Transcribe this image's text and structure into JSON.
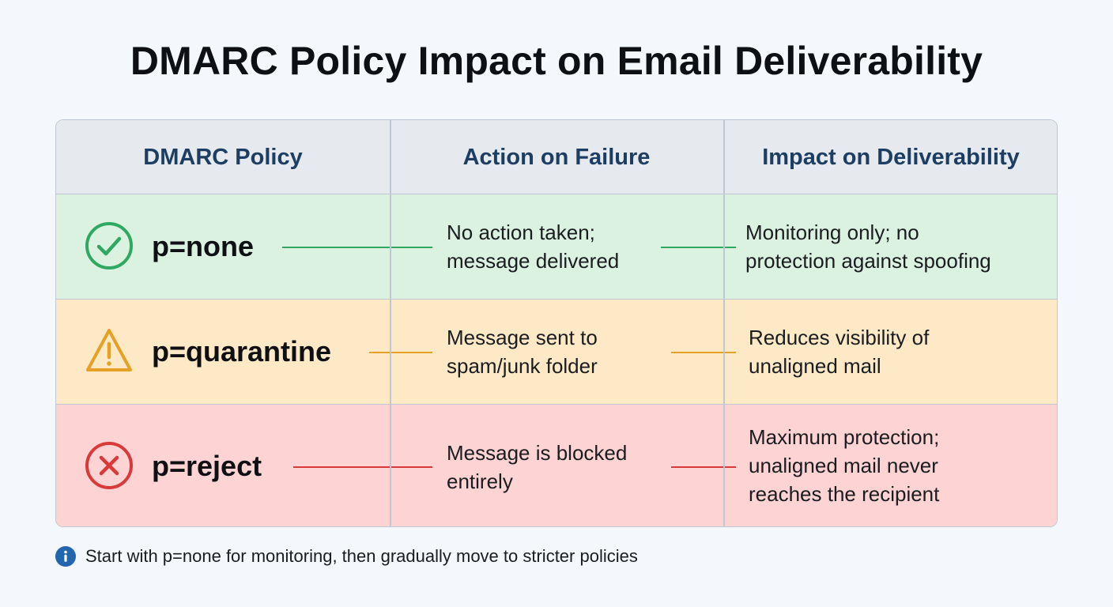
{
  "title": "DMARC Policy Impact on Email Deliverability",
  "table": {
    "headers": [
      "DMARC Policy",
      "Action on Failure",
      "Impact on Deliverability"
    ],
    "rows": [
      {
        "icon": "check-circle-icon",
        "policy": "p=none",
        "action": "No action taken;\nmessage delivered",
        "impact": "Monitoring only; no\nprotection against spoofing",
        "color": "#2fa862",
        "background": "#dcf2e1"
      },
      {
        "icon": "warning-triangle-icon",
        "policy": "p=quarantine",
        "action": "Message sent to\nspam/junk folder",
        "impact": "Reduces visibility of\nunaligned mail",
        "color": "#e5a126",
        "background": "#fde9c6"
      },
      {
        "icon": "x-circle-icon",
        "policy": "p=reject",
        "action": "Message is blocked\nentirely",
        "impact": "Maximum protection;\nunaligned mail never\nreaches the recipient",
        "color": "#d83a3a",
        "background": "#fdd3d3"
      }
    ]
  },
  "footnote": {
    "icon": "info-icon",
    "text": "Start with p=none for monitoring, then gradually move to stricter policies",
    "icon_color": "#2366b0"
  },
  "colors": {
    "header_text": "#1c3e62",
    "header_background": "#e6e9ee",
    "border": "#bfc7d2",
    "page_background": "#f4f7fb"
  }
}
